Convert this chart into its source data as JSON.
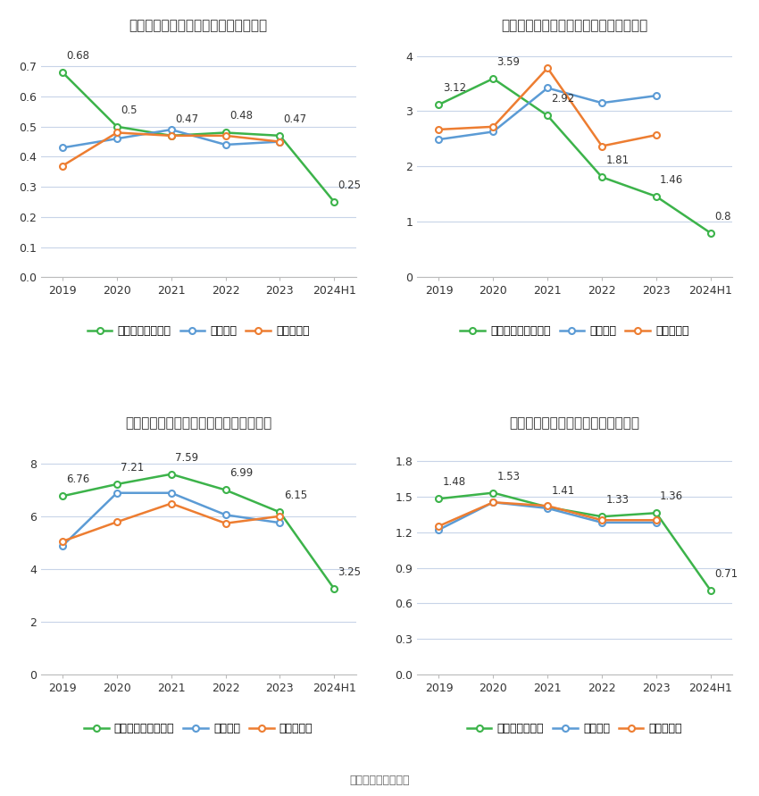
{
  "xticklabels": [
    "2019",
    "2020",
    "2021",
    "2022",
    "2023",
    "2024H1"
  ],
  "charts": [
    {
      "title": "浙海德曼历年总资产周转率情况（次）",
      "ylim": [
        0,
        0.79
      ],
      "yticks": [
        0,
        0.1,
        0.2,
        0.3,
        0.4,
        0.5,
        0.6,
        0.7
      ],
      "company": [
        0.68,
        0.5,
        0.47,
        0.48,
        0.47,
        0.25
      ],
      "industry_avg": [
        0.43,
        0.46,
        0.49,
        0.44,
        0.45,
        null
      ],
      "industry_med": [
        0.37,
        0.48,
        0.47,
        0.47,
        0.45,
        null
      ],
      "company_label": "公司总资产周转率"
    },
    {
      "title": "浙海德曼历年固定资产周转率情况（次）",
      "ylim": [
        0,
        4.3
      ],
      "yticks": [
        0,
        1,
        2,
        3,
        4
      ],
      "company": [
        3.12,
        3.59,
        2.92,
        1.81,
        1.46,
        0.8
      ],
      "industry_avg": [
        2.49,
        2.63,
        3.42,
        3.15,
        3.28,
        null
      ],
      "industry_med": [
        2.67,
        2.72,
        3.78,
        2.37,
        2.57,
        null
      ],
      "company_label": "公司固定资产周转率"
    },
    {
      "title": "浙海德曼历年应收账款周转率情况（次）",
      "ylim": [
        0,
        9.0
      ],
      "yticks": [
        0,
        2,
        4,
        6,
        8
      ],
      "company": [
        6.76,
        7.21,
        7.59,
        6.99,
        6.15,
        3.25
      ],
      "industry_avg": [
        4.88,
        6.88,
        6.88,
        6.05,
        5.75,
        null
      ],
      "industry_med": [
        5.05,
        5.78,
        6.48,
        5.73,
        6.0,
        null
      ],
      "company_label": "公司应收账款周转率"
    },
    {
      "title": "浙海德曼历年存货周转率情况（次）",
      "ylim": [
        0,
        2.0
      ],
      "yticks": [
        0,
        0.3,
        0.6,
        0.9,
        1.2,
        1.5,
        1.8
      ],
      "company": [
        1.48,
        1.53,
        1.41,
        1.33,
        1.36,
        0.71
      ],
      "industry_avg": [
        1.22,
        1.45,
        1.4,
        1.28,
        1.28,
        null
      ],
      "industry_med": [
        1.25,
        1.45,
        1.42,
        1.3,
        1.3,
        null
      ],
      "company_label": "公司存货周转率"
    }
  ],
  "colors": {
    "company": "#3cb34a",
    "industry_avg": "#5b9bd5",
    "industry_med": "#ed7d31"
  },
  "source_text": "数据来源：恒生聚源",
  "bg_color": "#ffffff",
  "grid_color": "#c8d4e8",
  "line_width": 1.8,
  "marker_size": 5
}
